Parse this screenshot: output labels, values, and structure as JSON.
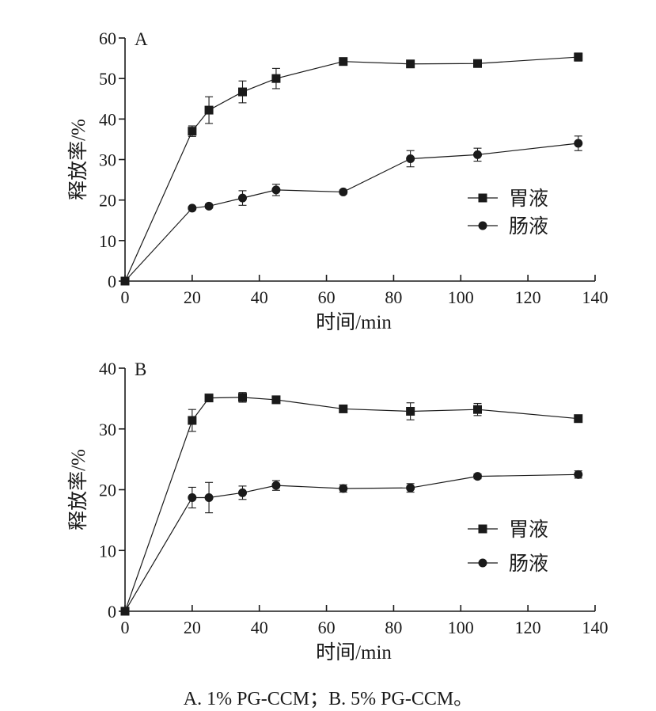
{
  "caption": "A. 1% PG-CCM；B. 5% PG-CCM。",
  "chart_data": [
    {
      "type": "line",
      "panel_label": "A",
      "xlabel": "时间/min",
      "ylabel": "释放率/%",
      "xlim": [
        0,
        140
      ],
      "ylim": [
        0,
        60
      ],
      "xticks": [
        0,
        20,
        40,
        60,
        80,
        100,
        120,
        140
      ],
      "yticks": [
        0,
        10,
        20,
        30,
        40,
        50,
        60
      ],
      "grid": false,
      "legend_position": "right",
      "series": [
        {
          "name": "胃液",
          "marker": "square",
          "x": [
            0,
            20,
            25,
            35,
            45,
            65,
            85,
            105,
            135
          ],
          "y": [
            0,
            37,
            42.2,
            46.7,
            50.0,
            54.2,
            53.6,
            53.7,
            55.3
          ],
          "error": [
            0,
            1.3,
            3.3,
            2.7,
            2.5,
            0.7,
            0.8,
            0.7,
            1.0
          ]
        },
        {
          "name": "肠液",
          "marker": "circle",
          "x": [
            0,
            20,
            25,
            35,
            45,
            65,
            85,
            105,
            135
          ],
          "y": [
            0,
            18.0,
            18.5,
            20.5,
            22.5,
            22.0,
            30.2,
            31.2,
            34.0
          ],
          "error": [
            0,
            0.4,
            0.5,
            1.8,
            1.4,
            0.5,
            2.0,
            1.6,
            1.8
          ]
        }
      ]
    },
    {
      "type": "line",
      "panel_label": "B",
      "xlabel": "时间/min",
      "ylabel": "释放率/%",
      "xlim": [
        0,
        140
      ],
      "ylim": [
        0,
        40
      ],
      "xticks": [
        0,
        20,
        40,
        60,
        80,
        100,
        120,
        140
      ],
      "yticks": [
        0,
        10,
        20,
        30,
        40
      ],
      "grid": false,
      "legend_position": "right",
      "series": [
        {
          "name": "胃液",
          "marker": "square",
          "x": [
            0,
            20,
            25,
            35,
            45,
            65,
            85,
            105,
            135
          ],
          "y": [
            0,
            31.4,
            35.1,
            35.2,
            34.8,
            33.3,
            32.9,
            33.2,
            31.7
          ],
          "error": [
            0,
            1.8,
            0.4,
            0.8,
            0.6,
            0.4,
            1.4,
            1.0,
            0.4
          ]
        },
        {
          "name": "肠液",
          "marker": "circle",
          "x": [
            0,
            20,
            25,
            35,
            45,
            65,
            85,
            105,
            135
          ],
          "y": [
            0,
            18.7,
            18.7,
            19.5,
            20.7,
            20.2,
            20.3,
            22.2,
            22.5
          ],
          "error": [
            0,
            1.7,
            2.5,
            1.1,
            0.8,
            0.6,
            0.7,
            0.4,
            0.6
          ]
        }
      ]
    }
  ]
}
